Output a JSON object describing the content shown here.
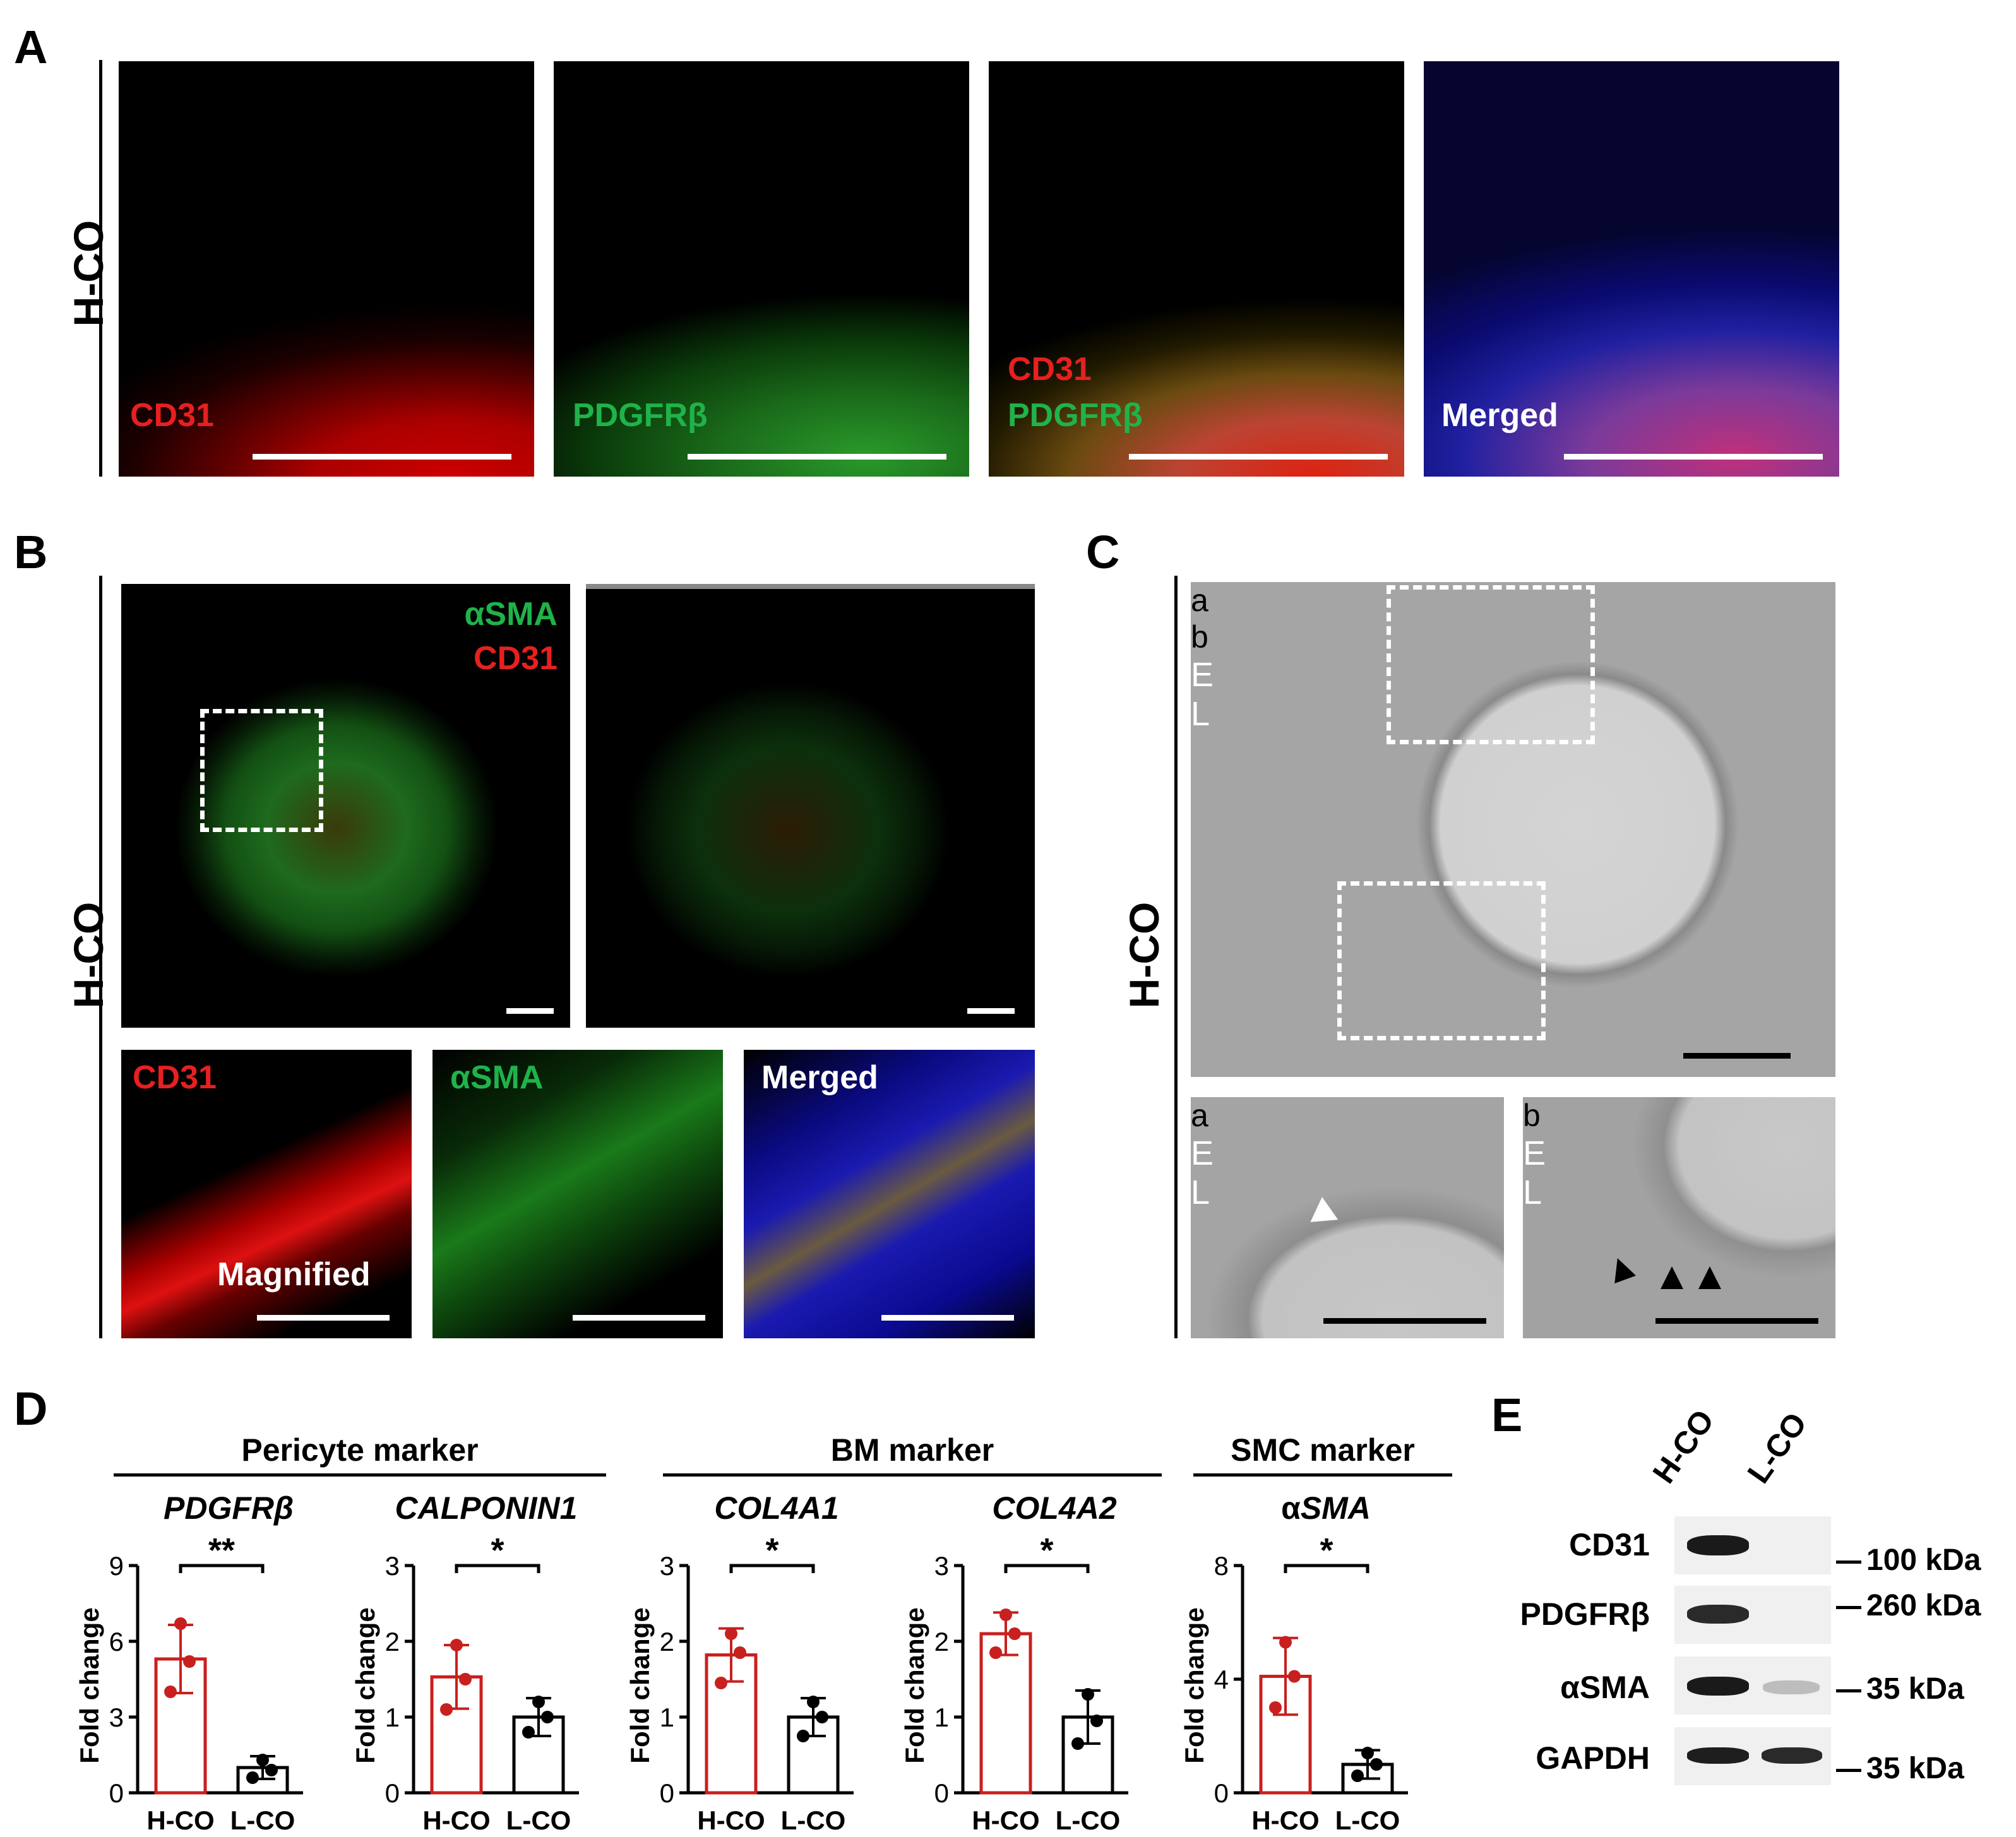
{
  "panels": {
    "A": {
      "label": "A",
      "side_label": "H-CO",
      "images": [
        {
          "label": "CD31",
          "color": "#e62020"
        },
        {
          "label": "PDGFRβ",
          "color": "#1fb34a"
        },
        {
          "label_line1": "CD31",
          "label_line2": "PDGFRβ"
        },
        {
          "label": "Merged",
          "color": "#ffffff"
        }
      ]
    },
    "B": {
      "label": "B",
      "side_label": "H-CO",
      "top_left_labels": [
        "αSMA",
        "CD31"
      ],
      "bottom": [
        {
          "label": "CD31",
          "sub": "Magnified"
        },
        {
          "label": "αSMA"
        },
        {
          "label": "Merged"
        }
      ]
    },
    "C": {
      "label": "C",
      "side_label": "H-CO",
      "main_labels": {
        "box_a": "a",
        "box_b": "b",
        "E": "E",
        "L": "L"
      },
      "sub_a": {
        "label": "a",
        "E": "E",
        "L": "L"
      },
      "sub_b": {
        "label": "b",
        "E": "E",
        "L": "L"
      }
    },
    "D": {
      "label": "D",
      "groups": [
        {
          "title": "Pericyte marker"
        },
        {
          "title": "BM marker"
        },
        {
          "title": "SMC marker"
        }
      ]
    },
    "E": {
      "label": "E",
      "lanes": [
        "H-CO",
        "L-CO"
      ],
      "rows": [
        {
          "protein": "CD31",
          "size": "100 kDa"
        },
        {
          "protein": "PDGFRβ",
          "size": "260 kDa"
        },
        {
          "protein": "αSMA",
          "size": "35 kDa"
        },
        {
          "protein": "GAPDH",
          "size": "35 kDa"
        }
      ]
    }
  },
  "chart_data": [
    {
      "type": "bar",
      "gene": "PDGFRβ",
      "categories": [
        "H-CO",
        "L-CO"
      ],
      "values": [
        5.3,
        1.0
      ],
      "errors": [
        1.35,
        0.45
      ],
      "points": [
        [
          4.0,
          5.2,
          6.7
        ],
        [
          0.6,
          0.9,
          1.3
        ]
      ],
      "ylabel": "Fold change",
      "ylim": [
        0,
        9
      ],
      "yticks": [
        0,
        3,
        6,
        9
      ],
      "significance": "**",
      "colors": [
        "#c8201f",
        "#000000"
      ]
    },
    {
      "type": "bar",
      "gene": "CALPONIN1",
      "categories": [
        "H-CO",
        "L-CO"
      ],
      "values": [
        1.53,
        1.0
      ],
      "errors": [
        0.42,
        0.25
      ],
      "points": [
        [
          1.1,
          1.5,
          1.95
        ],
        [
          0.8,
          1.0,
          1.2
        ]
      ],
      "ylabel": "Fold change",
      "ylim": [
        0,
        3
      ],
      "yticks": [
        0,
        1,
        2,
        3
      ],
      "significance": "*",
      "colors": [
        "#c8201f",
        "#000000"
      ]
    },
    {
      "type": "bar",
      "gene": "COL4A1",
      "categories": [
        "H-CO",
        "L-CO"
      ],
      "values": [
        1.82,
        1.0
      ],
      "errors": [
        0.35,
        0.25
      ],
      "points": [
        [
          1.45,
          1.85,
          2.1
        ],
        [
          0.75,
          1.0,
          1.2
        ]
      ],
      "ylabel": "Fold change",
      "ylim": [
        0,
        3
      ],
      "yticks": [
        0,
        1,
        2,
        3
      ],
      "significance": "*",
      "colors": [
        "#c8201f",
        "#000000"
      ]
    },
    {
      "type": "bar",
      "gene": "COL4A2",
      "categories": [
        "H-CO",
        "L-CO"
      ],
      "values": [
        2.1,
        1.0
      ],
      "errors": [
        0.28,
        0.35
      ],
      "points": [
        [
          1.85,
          2.1,
          2.35
        ],
        [
          0.65,
          0.95,
          1.3
        ]
      ],
      "ylabel": "Fold change",
      "ylim": [
        0,
        3
      ],
      "yticks": [
        0,
        1,
        2,
        3
      ],
      "significance": "*",
      "colors": [
        "#c8201f",
        "#000000"
      ]
    },
    {
      "type": "bar",
      "gene": "αSMA",
      "gene_prefix": "α",
      "gene_italic": "SMA",
      "categories": [
        "H-CO",
        "L-CO"
      ],
      "values": [
        4.1,
        1.0
      ],
      "errors": [
        1.35,
        0.5
      ],
      "points": [
        [
          3.0,
          4.1,
          5.3
        ],
        [
          0.6,
          1.0,
          1.4
        ]
      ],
      "ylabel": "Fold change",
      "ylim": [
        0,
        8
      ],
      "yticks": [
        0,
        4,
        8
      ],
      "significance": "*",
      "colors": [
        "#c8201f",
        "#000000"
      ]
    }
  ]
}
